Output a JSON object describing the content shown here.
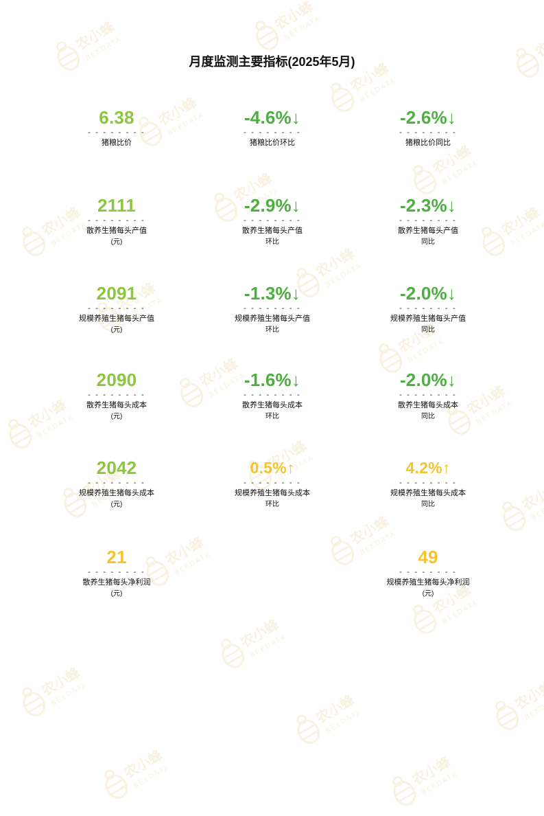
{
  "document": {
    "title": "月度监测主要指标(2025年5月)"
  },
  "colors": {
    "green_value": "#8cc63e",
    "down_green": "#4caf3f",
    "up_yellow": "#f5c42c",
    "yellow_value": "#f5c42c"
  },
  "watermark": {
    "text_cn": "农小蜂",
    "text_en": "BEEDATA"
  },
  "metrics": [
    {
      "value": "6.38",
      "arrow": "",
      "color": "green_value",
      "label": "猪粮比价",
      "sub": ""
    },
    {
      "value": "-4.6%",
      "arrow": "↓",
      "color": "down_green",
      "label": "猪粮比价环比",
      "sub": ""
    },
    {
      "value": "-2.6%",
      "arrow": "↓",
      "color": "down_green",
      "label": "猪粮比价同比",
      "sub": ""
    },
    {
      "value": "2111",
      "arrow": "",
      "color": "green_value",
      "label": "散养生猪每头产值",
      "sub": "(元)"
    },
    {
      "value": "-2.9%",
      "arrow": "↓",
      "color": "down_green",
      "label": "散养生猪每头产值",
      "sub": "环比"
    },
    {
      "value": "-2.3%",
      "arrow": "↓",
      "color": "down_green",
      "label": "散养生猪每头产值",
      "sub": "同比"
    },
    {
      "value": "2091",
      "arrow": "",
      "color": "green_value",
      "label": "规模养殖生猪每头产值",
      "sub": "(元)"
    },
    {
      "value": "-1.3%",
      "arrow": "↓",
      "color": "down_green",
      "label": "规模养殖生猪每头产值",
      "sub": "环比"
    },
    {
      "value": "-2.0%",
      "arrow": "↓",
      "color": "down_green",
      "label": "规模养殖生猪每头产值",
      "sub": "同比"
    },
    {
      "value": "2090",
      "arrow": "",
      "color": "green_value",
      "label": "散养生猪每头成本",
      "sub": "(元)"
    },
    {
      "value": "-1.6%",
      "arrow": "↓",
      "color": "down_green",
      "label": "散养生猪每头成本",
      "sub": "环比"
    },
    {
      "value": "-2.0%",
      "arrow": "↓",
      "color": "down_green",
      "label": "散养生猪每头成本",
      "sub": "同比"
    },
    {
      "value": "2042",
      "arrow": "",
      "color": "green_value",
      "label": "规模养殖生猪每头成本",
      "sub": "(元)"
    },
    {
      "value": "0.5%",
      "arrow": "↑",
      "color": "up_yellow",
      "label": "规模养殖生猪每头成本",
      "sub": "环比"
    },
    {
      "value": "4.2%",
      "arrow": "↑",
      "color": "up_yellow",
      "label": "规模养殖生猪每头成本",
      "sub": "同比"
    },
    {
      "value": "21",
      "arrow": "",
      "color": "yellow_value",
      "label": "散养生猪每头净利润",
      "sub": "(元)"
    },
    {
      "value": "49",
      "arrow": "",
      "color": "yellow_value",
      "label": "规模养殖生猪每头净利润",
      "sub": "(元)"
    }
  ],
  "separator": "- - - - - - - -"
}
